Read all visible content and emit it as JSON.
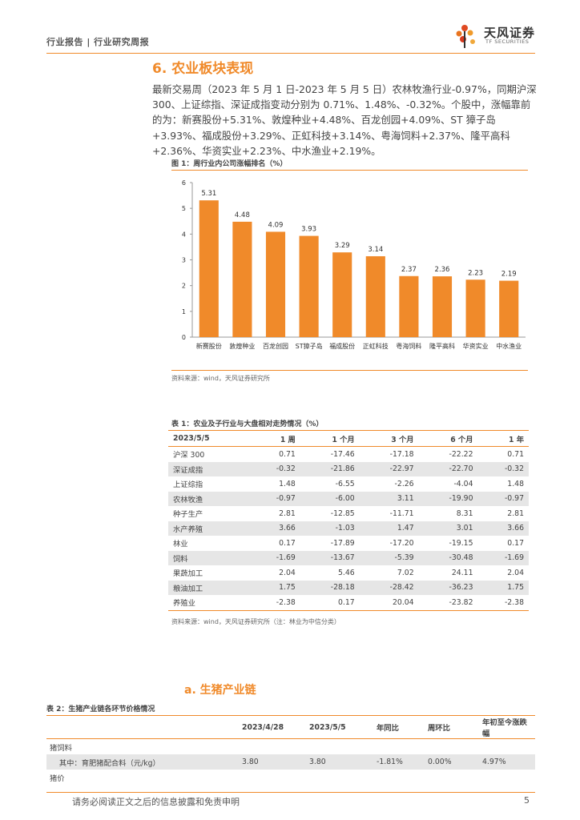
{
  "header": {
    "breadcrumb": "行业报告 | 行业研究周报",
    "logo_text": "天风证券",
    "logo_sub": "TF SECURITIES"
  },
  "section": {
    "title": "6. 农业板块表现",
    "paragraph": "最新交易周（2023 年 5 月 1 日-2023 年 5 月 5 日）农林牧渔行业-0.97%，同期沪深 300、上证综指、深证成指变动分别为 0.71%、1.48%、-0.32%。个股中，涨幅靠前的为：新赛股份+5.31%、敦煌种业+4.48%、百龙创园+4.09%、ST 獐子岛+3.93%、福成股份+3.29%、正虹科技+3.14%、粤海饲料+2.37%、隆平高科+2.36%、华资实业+2.23%、中水渔业+2.19%。"
  },
  "figure1": {
    "title": "图 1：周行业内公司涨幅排名（%）",
    "source": "资料来源：wind，天风证券研究所"
  },
  "chart_data": {
    "type": "bar",
    "title": "图 1：周行业内公司涨幅排名（%）",
    "categories": [
      "新赛股份",
      "敦煌种业",
      "百龙创园",
      "ST獐子岛",
      "福成股份",
      "正虹科技",
      "粤海饲料",
      "隆平高科",
      "华资实业",
      "中水渔业"
    ],
    "values": [
      5.31,
      4.48,
      4.09,
      3.93,
      3.29,
      3.14,
      2.37,
      2.36,
      2.23,
      2.19
    ],
    "value_labels": [
      "5.31",
      "4.48",
      "4.09",
      "3.93",
      "3.29",
      "3.14",
      "2.37",
      "2.36",
      "2.23",
      "2.19"
    ],
    "yticks": [
      "0",
      "1",
      "2",
      "3",
      "4",
      "5",
      "6"
    ],
    "ylim": [
      0,
      6
    ],
    "grid": false,
    "bar_color": "#f08a2a"
  },
  "table1": {
    "title": "表 1：农业及子行业与大盘相对走势情况（%）",
    "headers": [
      "2023/5/5",
      "1 周",
      "1 个月",
      "3 个月",
      "6 个月",
      "1 年"
    ],
    "rows": [
      [
        "沪深 300",
        "0.71",
        "-17.46",
        "-17.18",
        "-22.22",
        "0.71"
      ],
      [
        "深证成指",
        "-0.32",
        "-21.86",
        "-22.97",
        "-22.70",
        "-0.32"
      ],
      [
        "上证综指",
        "1.48",
        "-6.55",
        "-2.26",
        "-4.04",
        "1.48"
      ],
      [
        "农林牧渔",
        "-0.97",
        "-6.00",
        "3.11",
        "-19.90",
        "-0.97"
      ],
      [
        "种子生产",
        "2.81",
        "-12.85",
        "-11.71",
        "8.31",
        "2.81"
      ],
      [
        "水产养殖",
        "3.66",
        "-1.03",
        "1.47",
        "3.01",
        "3.66"
      ],
      [
        "林业",
        "0.17",
        "-17.89",
        "-17.20",
        "-19.15",
        "0.17"
      ],
      [
        "饲料",
        "-1.69",
        "-13.67",
        "-5.39",
        "-30.48",
        "-1.69"
      ],
      [
        "果蔬加工",
        "2.04",
        "5.46",
        "7.02",
        "24.11",
        "2.04"
      ],
      [
        "粮油加工",
        "1.75",
        "-28.18",
        "-28.42",
        "-36.23",
        "1.75"
      ],
      [
        "养殖业",
        "-2.38",
        "0.17",
        "20.04",
        "-23.82",
        "-2.38"
      ]
    ],
    "source": "资料来源：wind，天风证券研究所（注：林业为中信分类）"
  },
  "subsection": {
    "title": "a.  生猪产业链"
  },
  "table2": {
    "title": "表 2：生猪产业链各环节价格情况",
    "headers": [
      "",
      "2023/4/28",
      "2023/5/5",
      "年同比",
      "周环比",
      "年初至今涨跌幅"
    ],
    "group1": "猪饲料",
    "row1": [
      "    其中：育肥猪配合料（元/kg）",
      "3.80",
      "3.80",
      "-1.81%",
      "0.00%",
      "4.97%"
    ],
    "group2": "猪价"
  },
  "footer": {
    "disclaimer": "请务必阅读正文之后的信息披露和免责申明",
    "page": "5"
  }
}
